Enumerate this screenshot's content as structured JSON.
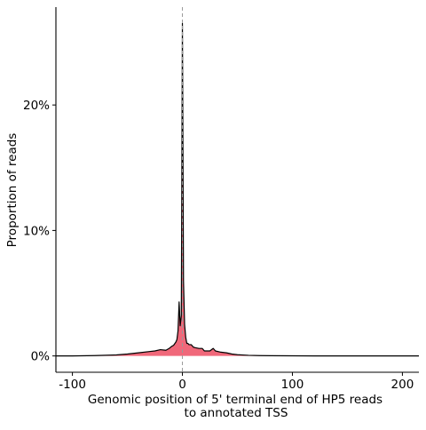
{
  "chart_data": {
    "type": "area",
    "title": "",
    "xlabel_lines": [
      "Genomic position of 5' terminal end of HP5 reads",
      "to annotated TSS"
    ],
    "ylabel": "Proportion of reads",
    "xlim": [
      -115,
      215
    ],
    "ylim": [
      -0.013,
      0.278
    ],
    "x_ticks": [
      -100,
      0,
      100,
      200
    ],
    "x_tick_labels": [
      "-100",
      "0",
      "100",
      "200"
    ],
    "y_ticks": [
      0,
      0.1,
      0.2
    ],
    "y_tick_labels": [
      "0%",
      "10%",
      "20%"
    ],
    "reference_line_x": 0,
    "grid": false,
    "legend": "none",
    "fill_color": "#f0687a",
    "line_color": "#000000",
    "series": [
      {
        "x": [
          -115,
          -100,
          -80,
          -60,
          -50,
          -40,
          -30,
          -25,
          -20,
          -15,
          -12,
          -10,
          -8,
          -6,
          -5,
          -4,
          -3,
          -2,
          -1,
          0,
          1,
          2,
          3,
          4,
          5,
          6,
          8,
          10,
          12,
          15,
          18,
          20,
          25,
          28,
          30,
          35,
          40,
          45,
          50,
          60,
          70,
          80,
          100,
          120,
          150,
          180,
          215
        ],
        "y": [
          0.0,
          0.0,
          0.0003,
          0.0008,
          0.0015,
          0.0025,
          0.0035,
          0.004,
          0.005,
          0.0045,
          0.006,
          0.0075,
          0.0085,
          0.011,
          0.013,
          0.02,
          0.043,
          0.024,
          0.032,
          0.265,
          0.06,
          0.025,
          0.015,
          0.01,
          0.01,
          0.009,
          0.009,
          0.007,
          0.0065,
          0.006,
          0.006,
          0.004,
          0.004,
          0.006,
          0.004,
          0.003,
          0.0025,
          0.0015,
          0.001,
          0.0005,
          0.0003,
          0.0002,
          0.0001,
          0.0,
          0.0,
          0.0,
          0.0
        ]
      }
    ]
  }
}
